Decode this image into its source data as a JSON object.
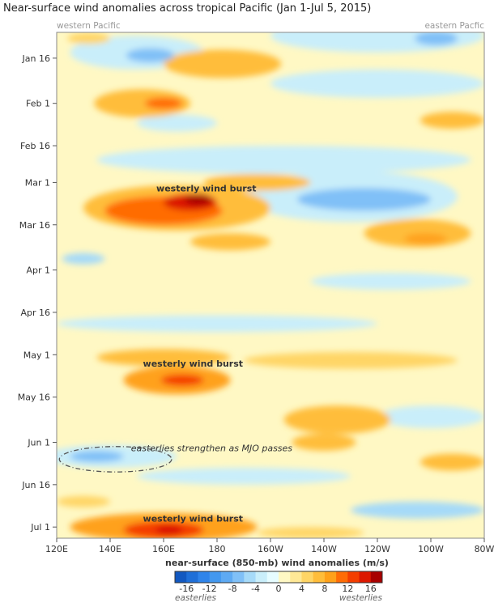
{
  "chart_data": {
    "type": "heatmap",
    "title": "Near-surface wind anomalies across tropical Pacific (Jan 1-Jul 5, 2015)",
    "corner_labels": {
      "left": "western Pacific",
      "right": "eastern Pacfic"
    },
    "x_ticks": [
      "120E",
      "140E",
      "160E",
      "180",
      "160W",
      "140W",
      "120W",
      "100W",
      "80W"
    ],
    "x_tick_lon": [
      120,
      140,
      160,
      180,
      200,
      220,
      240,
      260,
      280
    ],
    "y_ticks": [
      "Jan 16",
      "Feb 1",
      "Feb 16",
      "Mar 1",
      "Mar 16",
      "Apr 1",
      "Apr 16",
      "May 1",
      "May 16",
      "Jun 1",
      "Jun 16",
      "Jul 1"
    ],
    "xlim": [
      120,
      280
    ],
    "ylim": [
      "Jan 7",
      "Jul 4"
    ],
    "colorbar": {
      "title": "near-surface (850-mb) wind anomalies (m/s)",
      "tick_labels": [
        "-16",
        "-12",
        "-8",
        "-4",
        "0",
        "4",
        "8",
        "12",
        "16"
      ],
      "tick_values": [
        -16,
        -12,
        -8,
        -4,
        0,
        4,
        8,
        12,
        16
      ],
      "range": [
        -18,
        18
      ],
      "step": 2,
      "left_label": "easterlies",
      "right_label": "westerlies",
      "colors": [
        "#1258c0",
        "#1f6fd8",
        "#2f84ea",
        "#4398ef",
        "#5eaaf3",
        "#80c0f7",
        "#a6daf8",
        "#c9eefa",
        "#e6fcff",
        "#fff8c4",
        "#ffe896",
        "#ffd566",
        "#ffbd3a",
        "#ffa11a",
        "#ff6c05",
        "#f43e00",
        "#dc1800",
        "#a80000"
      ]
    },
    "features": [
      {
        "lon": 240,
        "date": "Jan 8",
        "value": -3,
        "dlon": 40,
        "ddays": 6
      },
      {
        "lon": 262,
        "date": "Jan 9",
        "value": -7,
        "dlon": 8,
        "ddays": 2.5
      },
      {
        "lon": 150,
        "date": "Jan 14",
        "value": -3,
        "dlon": 25,
        "ddays": 6
      },
      {
        "lon": 155,
        "date": "Jan 15",
        "value": -7,
        "dlon": 9,
        "ddays": 2.5
      },
      {
        "lon": 182,
        "date": "Jan 18",
        "value": 6,
        "dlon": 22,
        "ddays": 5
      },
      {
        "lon": 132,
        "date": "Jan 9",
        "value": 5,
        "dlon": 8,
        "ddays": 2
      },
      {
        "lon": 240,
        "date": "Jan 25",
        "value": -2,
        "dlon": 40,
        "ddays": 5
      },
      {
        "lon": 152,
        "date": "Feb 1",
        "value": 7,
        "dlon": 18,
        "ddays": 5
      },
      {
        "lon": 160,
        "date": "Feb 1",
        "value": 10,
        "dlon": 7,
        "ddays": 2
      },
      {
        "lon": 165,
        "date": "Feb 8",
        "value": -3,
        "dlon": 15,
        "ddays": 3
      },
      {
        "lon": 268,
        "date": "Feb 7",
        "value": 6,
        "dlon": 12,
        "ddays": 3
      },
      {
        "lon": 205,
        "date": "Feb 21",
        "value": -2,
        "dlon": 70,
        "ddays": 5
      },
      {
        "lon": 195,
        "date": "Mar 1",
        "value": 6,
        "dlon": 20,
        "ddays": 3
      },
      {
        "lon": 230,
        "date": "Mar 6",
        "value": -3,
        "dlon": 40,
        "ddays": 9
      },
      {
        "lon": 235,
        "date": "Mar 7",
        "value": -6,
        "dlon": 25,
        "ddays": 4
      },
      {
        "lon": 165,
        "date": "Mar 10",
        "value": 6,
        "dlon": 35,
        "ddays": 8
      },
      {
        "lon": 160,
        "date": "Mar 11",
        "value": 10,
        "dlon": 22,
        "ddays": 5
      },
      {
        "lon": 170,
        "date": "Mar 8",
        "value": 14,
        "dlon": 10,
        "ddays": 3
      },
      {
        "lon": 173,
        "date": "Mar 7",
        "value": 17,
        "dlon": 5,
        "ddays": 2
      },
      {
        "lon": 255,
        "date": "Mar 19",
        "value": 6,
        "dlon": 20,
        "ddays": 5
      },
      {
        "lon": 258,
        "date": "Mar 21",
        "value": 8,
        "dlon": 8,
        "ddays": 2
      },
      {
        "lon": 185,
        "date": "Mar 22",
        "value": 6,
        "dlon": 15,
        "ddays": 3
      },
      {
        "lon": 130,
        "date": "Mar 28",
        "value": -5,
        "dlon": 8,
        "ddays": 2
      },
      {
        "lon": 245,
        "date": "Apr 5",
        "value": -2,
        "dlon": 30,
        "ddays": 3
      },
      {
        "lon": 180,
        "date": "Apr 20",
        "value": -2,
        "dlon": 60,
        "ddays": 3
      },
      {
        "lon": 160,
        "date": "May 2",
        "value": 6,
        "dlon": 25,
        "ddays": 3
      },
      {
        "lon": 230,
        "date": "May 3",
        "value": 5,
        "dlon": 40,
        "ddays": 3
      },
      {
        "lon": 165,
        "date": "May 10",
        "value": 8,
        "dlon": 20,
        "ddays": 5
      },
      {
        "lon": 167,
        "date": "May 10",
        "value": 12,
        "dlon": 8,
        "ddays": 2
      },
      {
        "lon": 225,
        "date": "May 24",
        "value": 6,
        "dlon": 20,
        "ddays": 5
      },
      {
        "lon": 220,
        "date": "Jun 1",
        "value": 6,
        "dlon": 12,
        "ddays": 3
      },
      {
        "lon": 260,
        "date": "May 23",
        "value": -3,
        "dlon": 20,
        "ddays": 4
      },
      {
        "lon": 268,
        "date": "Jun 8",
        "value": 6,
        "dlon": 12,
        "ddays": 3
      },
      {
        "lon": 140,
        "date": "Jun 6",
        "value": -3,
        "dlon": 25,
        "ddays": 4
      },
      {
        "lon": 135,
        "date": "Jun 6",
        "value": -6,
        "dlon": 10,
        "ddays": 2
      },
      {
        "lon": 190,
        "date": "Jun 13",
        "value": -3,
        "dlon": 40,
        "ddays": 3
      },
      {
        "lon": 255,
        "date": "Jun 25",
        "value": -5,
        "dlon": 25,
        "ddays": 3
      },
      {
        "lon": 130,
        "date": "Jun 22",
        "value": 5,
        "dlon": 10,
        "ddays": 2
      },
      {
        "lon": 160,
        "date": "Jul 1",
        "value": 8,
        "dlon": 35,
        "ddays": 5
      },
      {
        "lon": 160,
        "date": "Jul 2",
        "value": 12,
        "dlon": 15,
        "ddays": 3
      },
      {
        "lon": 162,
        "date": "Jul 2",
        "value": 14,
        "dlon": 5,
        "ddays": 2
      },
      {
        "lon": 215,
        "date": "Jul 3",
        "value": 5,
        "dlon": 20,
        "ddays": 2
      }
    ],
    "annotations": [
      {
        "text": "westerly wind burst",
        "lon": 176,
        "date": "Mar 3"
      },
      {
        "text": "westerly wind burst",
        "lon": 171,
        "date": "May 4"
      },
      {
        "text": "easterlies strengthen as MJO passes",
        "lon": 178,
        "date": "Jun 3",
        "style": "italic"
      },
      {
        "text": "westerly wind burst",
        "lon": 171,
        "date": "Jun 28"
      }
    ],
    "highlight_ellipse": {
      "lon": 142,
      "date": "Jun 7",
      "dlon": 21,
      "ddays": 4.5
    }
  }
}
